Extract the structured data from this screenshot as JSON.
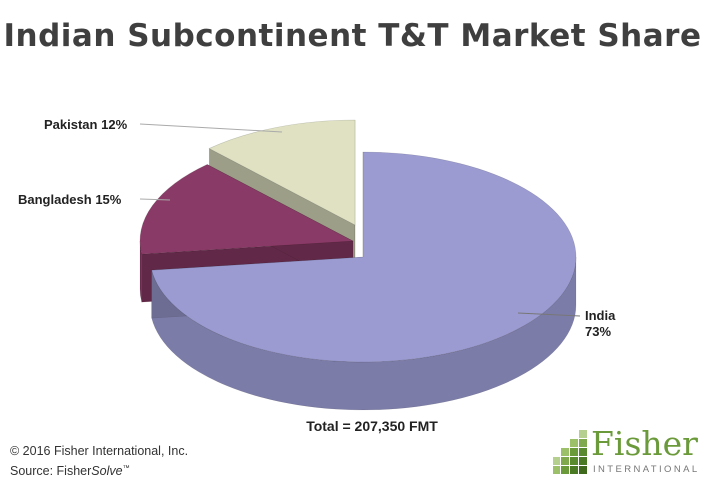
{
  "chart_data": {
    "type": "pie",
    "title": "Indian Subcontinent T&T Market Share",
    "slices": [
      {
        "label": "India",
        "value": 73,
        "display": "73%",
        "color": "#9b9bd2"
      },
      {
        "label": "Bangladesh",
        "value": 15,
        "display": "15%",
        "color": "#8a3a66"
      },
      {
        "label": "Pakistan",
        "value": 12,
        "display": "12%",
        "color": "#dfe1c2"
      }
    ],
    "total_label": "Total = 207,350 FMT"
  },
  "footer": {
    "copyright": "© 2016 Fisher International, Inc.",
    "source_prefix": "Source: Fisher",
    "source_product": "Solve",
    "source_tm": "™"
  },
  "logo": {
    "word": "Fisher",
    "sub": "INTERNATIONAL"
  }
}
